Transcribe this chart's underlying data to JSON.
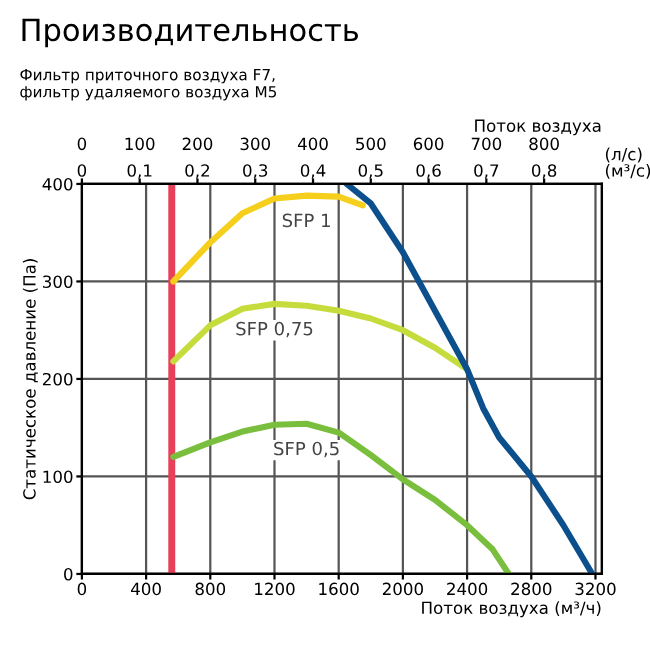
{
  "chart_data": {
    "type": "line",
    "title": "Производительность",
    "subtitle": "Фильтр приточного воздуха F7,\nфильтр удаляемого воздуха M5",
    "xlabel": "Поток воздуха (м³/ч)",
    "ylabel": "Статическое давление (Па)",
    "x2label": "Поток воздуха",
    "annotations": [
      "(л/с)",
      "(м³/с)",
      "0",
      "0,1",
      "0,2",
      "0,3",
      "0,4",
      "0,5",
      "0,6",
      "0,7",
      "0,8"
    ],
    "xlim": [
      0,
      3240
    ],
    "xticks": [
      0,
      400,
      800,
      1200,
      1600,
      2000,
      2400,
      2800,
      3200
    ],
    "ylim": [
      0,
      400
    ],
    "yticks": [
      0,
      100,
      200,
      300,
      400
    ],
    "x2lim": [
      0,
      900
    ],
    "x2ticks": [
      0,
      100,
      200,
      300,
      400,
      500,
      600,
      700,
      800
    ],
    "grid": true,
    "legend": false,
    "marker": "none",
    "line_style": "solid",
    "ref_lines": [
      {
        "axis": "x",
        "value": 560,
        "color": "#e8405a"
      }
    ],
    "series": [
      {
        "name": "SFP 1",
        "color": "#f5cf1c",
        "x": [
          570,
          800,
          1000,
          1200,
          1400,
          1600,
          1750
        ],
        "values": [
          300,
          340,
          370,
          385,
          388,
          387,
          378
        ]
      },
      {
        "name": "SFP 0,75",
        "color": "#c6dc3c",
        "x": [
          570,
          800,
          1000,
          1200,
          1400,
          1600,
          1800,
          2000,
          2200,
          2400
        ],
        "values": [
          218,
          255,
          272,
          277,
          275,
          270,
          262,
          250,
          232,
          210
        ]
      },
      {
        "name": "SFP 0,5",
        "color": "#79be3c",
        "x": [
          570,
          800,
          1000,
          1200,
          1400,
          1600,
          1800,
          2000,
          2200,
          2400,
          2560,
          2660
        ],
        "values": [
          120,
          135,
          146,
          153,
          154,
          145,
          122,
          97,
          76,
          50,
          25,
          0
        ]
      },
      {
        "color": "#0b4f8c",
        "x": [
          1650,
          1800,
          2000,
          2200,
          2400,
          2500,
          2600,
          2800,
          3000,
          3180
        ],
        "values": [
          400,
          380,
          330,
          270,
          210,
          170,
          140,
          100,
          50,
          0
        ]
      }
    ]
  }
}
